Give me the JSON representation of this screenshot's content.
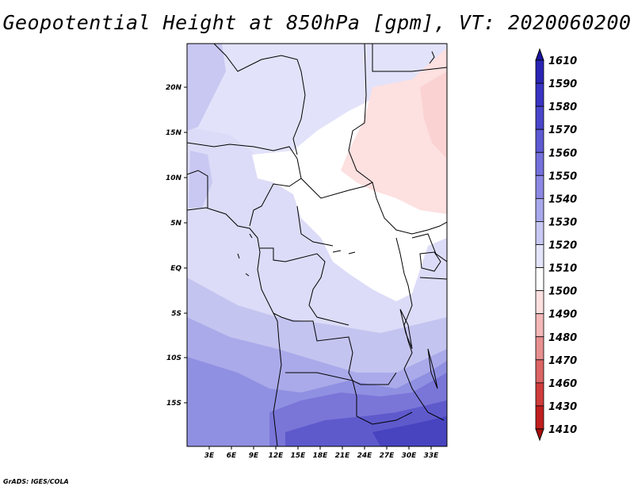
{
  "title": "Geopotential Height at 850hPa [gpm], VT: 2020060200",
  "credit": "GrADS: IGES/COLA",
  "map": {
    "lon_ticks": [
      "3E",
      "6E",
      "9E",
      "12E",
      "15E",
      "18E",
      "21E",
      "24E",
      "27E",
      "30E",
      "33E"
    ],
    "lat_ticks": [
      "20N",
      "15N",
      "10N",
      "5N",
      "EQ",
      "5S",
      "10S",
      "15S"
    ]
  },
  "colorbar": {
    "levels": [
      "1610",
      "1590",
      "1580",
      "1570",
      "1560",
      "1550",
      "1540",
      "1530",
      "1520",
      "1510",
      "1500",
      "1490",
      "1480",
      "1470",
      "1460",
      "1430",
      "1410"
    ],
    "colors": [
      "#1a14a0",
      "#2a24b4",
      "#3a34c4",
      "#4a46cc",
      "#5e5ad4",
      "#7470dc",
      "#8c88e4",
      "#a8a8ec",
      "#c8c8f4",
      "#e4e4fa",
      "#ffffff",
      "#fce0e0",
      "#f4b8b8",
      "#e89090",
      "#dc6464",
      "#d03c3c",
      "#c01e1e",
      "#a80e0e"
    ]
  }
}
